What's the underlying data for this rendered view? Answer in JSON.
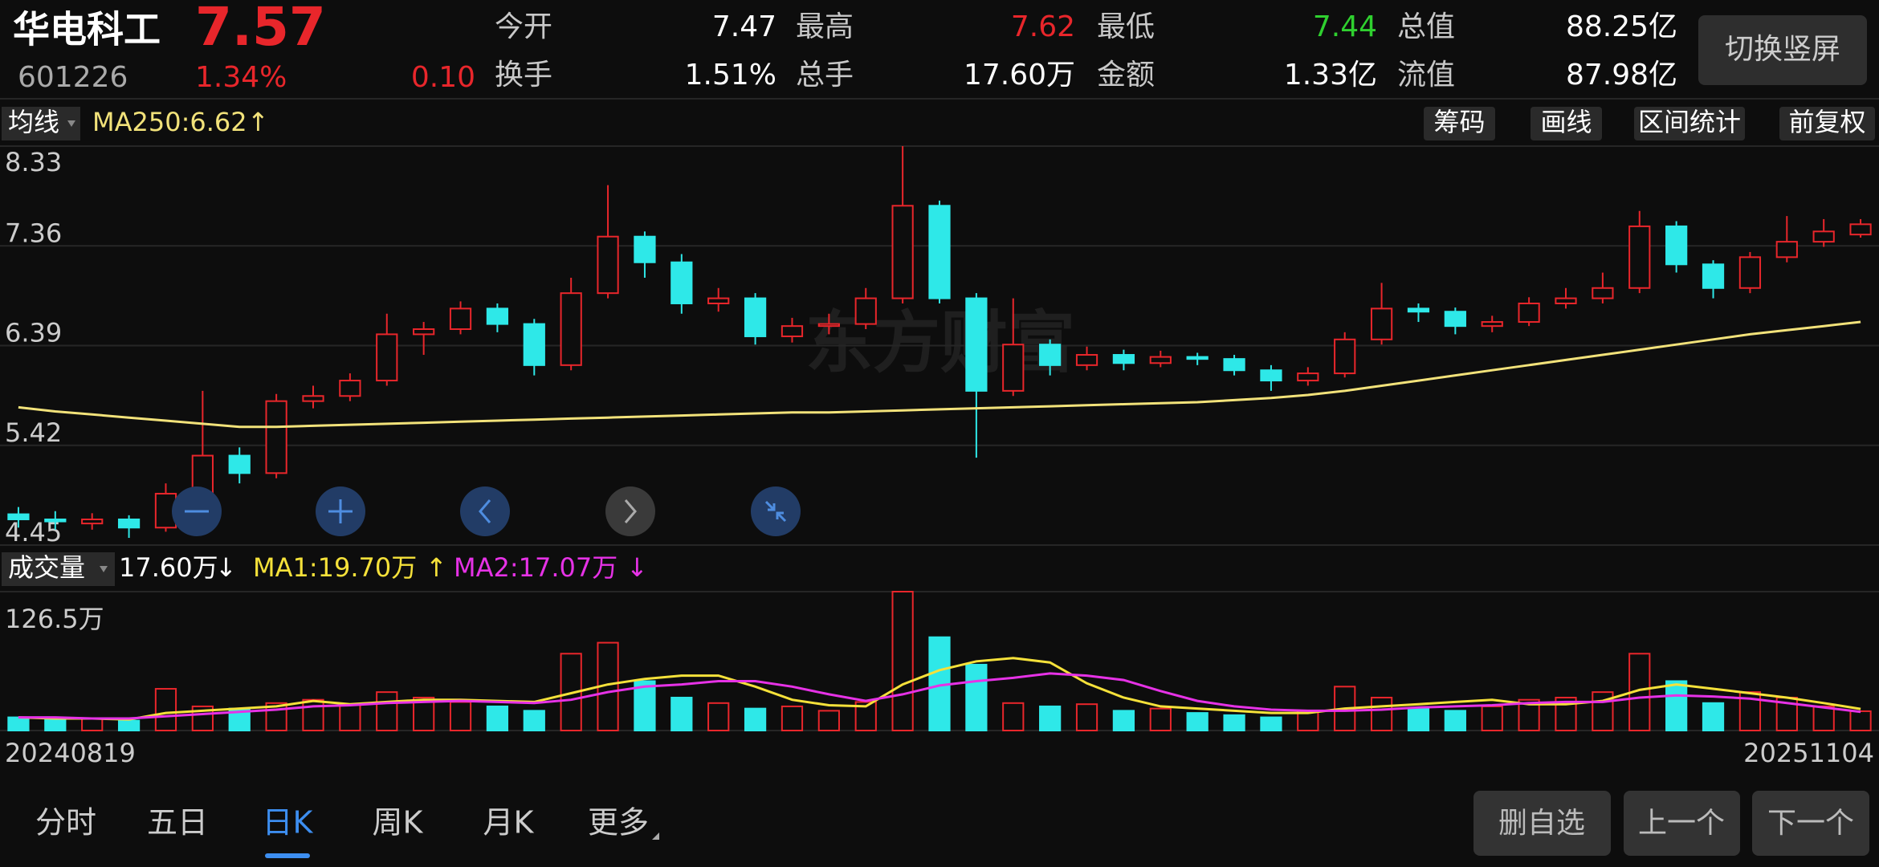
{
  "header": {
    "name": "华电科工",
    "price": "7.57",
    "code": "601226",
    "change_pct": "1.34%",
    "change": "0.10",
    "stats": [
      {
        "label": "今开",
        "value": "7.47"
      },
      {
        "label": "最高",
        "value": "7.62"
      },
      {
        "label": "最低",
        "value": "7.44"
      },
      {
        "label": "总值",
        "value": "88.25亿"
      },
      {
        "label": "换手",
        "value": "1.51%"
      },
      {
        "label": "总手",
        "value": "17.60万"
      },
      {
        "label": "金额",
        "value": "1.33亿"
      },
      {
        "label": "流值",
        "value": "87.98亿"
      }
    ],
    "orientation_button": "切换竖屏"
  },
  "toolbar": {
    "indicator": "均线",
    "ma_label": "MA250:6.62",
    "ma_arrow": "↑",
    "buttons": [
      "筹码",
      "画线",
      "区间统计",
      "前复权"
    ]
  },
  "watermark": "东方财富",
  "chart_data": [
    {
      "type": "candlestick",
      "ylim": [
        4.45,
        8.33
      ],
      "yticks": [
        8.33,
        7.36,
        6.39,
        5.42,
        4.45
      ],
      "up_color": "#e8262b",
      "down_color": "#2ee8e8",
      "candles": [
        [
          4.75,
          4.82,
          4.62,
          4.7
        ],
        [
          4.7,
          4.78,
          4.6,
          4.68
        ],
        [
          4.66,
          4.76,
          4.6,
          4.7
        ],
        [
          4.7,
          4.74,
          4.52,
          4.62
        ],
        [
          4.62,
          5.05,
          4.58,
          4.95
        ],
        [
          4.95,
          5.95,
          4.9,
          5.32
        ],
        [
          5.32,
          5.4,
          5.05,
          5.15
        ],
        [
          5.15,
          5.92,
          5.1,
          5.85
        ],
        [
          5.85,
          6.0,
          5.78,
          5.9
        ],
        [
          5.9,
          6.12,
          5.85,
          6.05
        ],
        [
          6.05,
          6.7,
          6.0,
          6.5
        ],
        [
          6.5,
          6.62,
          6.3,
          6.55
        ],
        [
          6.55,
          6.82,
          6.5,
          6.75
        ],
        [
          6.75,
          6.8,
          6.52,
          6.6
        ],
        [
          6.6,
          6.65,
          6.1,
          6.2
        ],
        [
          6.2,
          7.05,
          6.15,
          6.9
        ],
        [
          6.9,
          7.95,
          6.85,
          7.45
        ],
        [
          7.45,
          7.5,
          7.05,
          7.2
        ],
        [
          7.2,
          7.28,
          6.7,
          6.8
        ],
        [
          6.8,
          6.95,
          6.72,
          6.85
        ],
        [
          6.85,
          6.9,
          6.4,
          6.48
        ],
        [
          6.48,
          6.66,
          6.42,
          6.58
        ],
        [
          6.58,
          6.7,
          6.5,
          6.6
        ],
        [
          6.6,
          6.95,
          6.55,
          6.85
        ],
        [
          6.85,
          8.33,
          6.8,
          7.75
        ],
        [
          7.75,
          7.8,
          6.8,
          6.85
        ],
        [
          6.85,
          6.9,
          5.3,
          5.95
        ],
        [
          5.95,
          6.85,
          5.9,
          6.4
        ],
        [
          6.4,
          6.45,
          6.1,
          6.2
        ],
        [
          6.2,
          6.38,
          6.15,
          6.3
        ],
        [
          6.3,
          6.35,
          6.15,
          6.22
        ],
        [
          6.22,
          6.34,
          6.18,
          6.28
        ],
        [
          6.28,
          6.32,
          6.2,
          6.26
        ],
        [
          6.26,
          6.3,
          6.1,
          6.15
        ],
        [
          6.15,
          6.2,
          5.95,
          6.05
        ],
        [
          6.05,
          6.18,
          6.0,
          6.12
        ],
        [
          6.12,
          6.52,
          6.08,
          6.45
        ],
        [
          6.45,
          7.0,
          6.4,
          6.75
        ],
        [
          6.75,
          6.8,
          6.62,
          6.72
        ],
        [
          6.72,
          6.76,
          6.5,
          6.58
        ],
        [
          6.58,
          6.68,
          6.52,
          6.62
        ],
        [
          6.62,
          6.86,
          6.58,
          6.8
        ],
        [
          6.8,
          6.95,
          6.75,
          6.85
        ],
        [
          6.85,
          7.1,
          6.8,
          6.95
        ],
        [
          6.95,
          7.7,
          6.9,
          7.55
        ],
        [
          7.55,
          7.6,
          7.1,
          7.18
        ],
        [
          7.18,
          7.22,
          6.85,
          6.95
        ],
        [
          6.95,
          7.3,
          6.9,
          7.25
        ],
        [
          7.25,
          7.65,
          7.2,
          7.4
        ],
        [
          7.4,
          7.62,
          7.35,
          7.5
        ],
        [
          7.47,
          7.62,
          7.44,
          7.57
        ]
      ],
      "ma250": {
        "color": "#f2e27a",
        "values": [
          5.79,
          5.75,
          5.72,
          5.69,
          5.66,
          5.63,
          5.6,
          5.6,
          5.61,
          5.62,
          5.63,
          5.64,
          5.65,
          5.66,
          5.67,
          5.68,
          5.69,
          5.7,
          5.71,
          5.72,
          5.73,
          5.74,
          5.74,
          5.75,
          5.76,
          5.77,
          5.78,
          5.79,
          5.8,
          5.81,
          5.82,
          5.83,
          5.84,
          5.86,
          5.88,
          5.91,
          5.95,
          6.0,
          6.05,
          6.1,
          6.15,
          6.2,
          6.25,
          6.3,
          6.35,
          6.4,
          6.45,
          6.5,
          6.54,
          6.58,
          6.62
        ]
      },
      "x_start": "20240819",
      "x_end": "20251104"
    },
    {
      "type": "bar",
      "indicator": "成交量",
      "current": "17.60万",
      "current_arrow": "↓",
      "ma1_label": "MA1:19.70万",
      "ma1_arrow": "↑",
      "ma2_label": "MA2:17.07万",
      "ma2_arrow": "↓",
      "ylim": [
        0,
        126.5
      ],
      "yticks": [
        {
          "value": 126.5,
          "label": "126.5万"
        }
      ],
      "values": [
        12,
        10,
        11,
        9,
        38,
        22,
        20,
        25,
        28,
        24,
        35,
        30,
        26,
        22,
        18,
        70,
        80,
        45,
        30,
        25,
        20,
        22,
        18,
        26,
        126.5,
        85,
        60,
        25,
        22,
        24,
        18,
        20,
        16,
        14,
        12,
        18,
        40,
        30,
        20,
        18,
        22,
        28,
        30,
        35,
        70,
        45,
        25,
        35,
        30,
        22,
        17.6
      ],
      "ma1": {
        "color": "#f5e13a",
        "values": [
          12,
          11,
          11,
          10,
          16,
          18,
          20,
          22,
          27,
          24,
          26,
          28,
          28,
          27,
          26,
          34,
          42,
          47,
          50,
          50,
          40,
          28,
          23,
          22,
          42,
          55,
          63,
          66,
          62,
          43,
          30,
          22,
          20,
          18,
          16,
          16,
          20,
          22,
          24,
          26,
          28,
          24,
          24,
          27,
          37,
          42,
          38,
          34,
          30,
          25,
          19.7
        ]
      },
      "ma2": {
        "color": "#e632e6",
        "values": [
          12,
          12,
          11,
          11,
          13,
          15,
          17,
          19,
          22,
          23,
          25,
          26,
          27,
          26,
          25,
          28,
          35,
          40,
          42,
          45,
          45,
          40,
          33,
          27,
          33,
          41,
          45,
          48,
          52,
          50,
          46,
          36,
          27,
          22,
          19,
          18,
          18,
          19,
          21,
          22,
          23,
          25,
          26,
          26,
          30,
          32,
          31,
          29,
          25,
          21,
          17.07
        ]
      }
    }
  ],
  "tabs": [
    "分时",
    "五日",
    "日K",
    "周K",
    "月K",
    "更多"
  ],
  "active_tab": 2,
  "actions": [
    "删自选",
    "上一个",
    "下一个"
  ]
}
